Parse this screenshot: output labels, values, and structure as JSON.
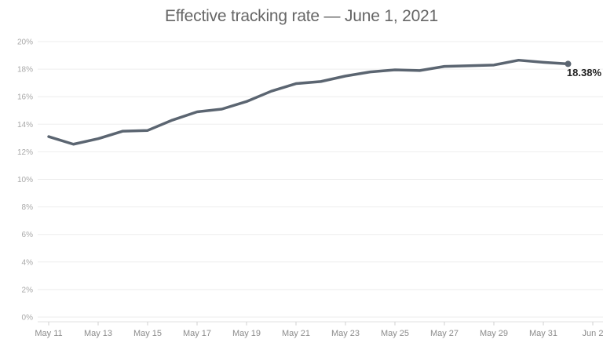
{
  "title": "Effective tracking rate — June 1, 2021",
  "chart_data": {
    "type": "line",
    "title": "Effective tracking rate — June 1, 2021",
    "x": [
      "May 11",
      "May 12",
      "May 13",
      "May 14",
      "May 15",
      "May 16",
      "May 17",
      "May 18",
      "May 19",
      "May 20",
      "May 21",
      "May 22",
      "May 23",
      "May 24",
      "May 25",
      "May 26",
      "May 27",
      "May 28",
      "May 29",
      "May 30",
      "May 31",
      "Jun 1"
    ],
    "values": [
      13.1,
      12.55,
      12.95,
      13.5,
      13.55,
      14.3,
      14.9,
      15.1,
      15.65,
      16.4,
      16.95,
      17.1,
      17.5,
      17.8,
      17.95,
      17.9,
      18.2,
      18.25,
      18.3,
      18.65,
      18.5,
      18.38
    ],
    "x_tick_labels": [
      "May 11",
      "May 13",
      "May 15",
      "May 17",
      "May 19",
      "May 21",
      "May 23",
      "May 25",
      "May 27",
      "May 29",
      "May 31",
      "Jun 2"
    ],
    "x_tick_days": [
      0,
      2,
      4,
      6,
      8,
      10,
      12,
      14,
      16,
      18,
      20,
      22
    ],
    "y_tick_labels": [
      "0%",
      "2%",
      "4%",
      "6%",
      "8%",
      "10%",
      "12%",
      "14%",
      "16%",
      "18%",
      "20%"
    ],
    "y_tick_values": [
      0,
      2,
      4,
      6,
      8,
      10,
      12,
      14,
      16,
      18,
      20
    ],
    "ylim": [
      0,
      20
    ],
    "x_domain_days": [
      0,
      22
    ],
    "grid": true,
    "legend": "none",
    "end_point_label": "18.38%",
    "end_point_value": 18.38,
    "end_point_x": "Jun 1"
  },
  "colors": {
    "line": "#5b6571",
    "grid": "#ededed",
    "axis_line": "#e2e2e2",
    "tick_mark": "#d0d0d0",
    "y_tick_label": "#a8a8a8",
    "x_tick_label": "#8c8c8c",
    "title": "#666666",
    "end_label": "#1f1f1f",
    "background": "#ffffff"
  }
}
